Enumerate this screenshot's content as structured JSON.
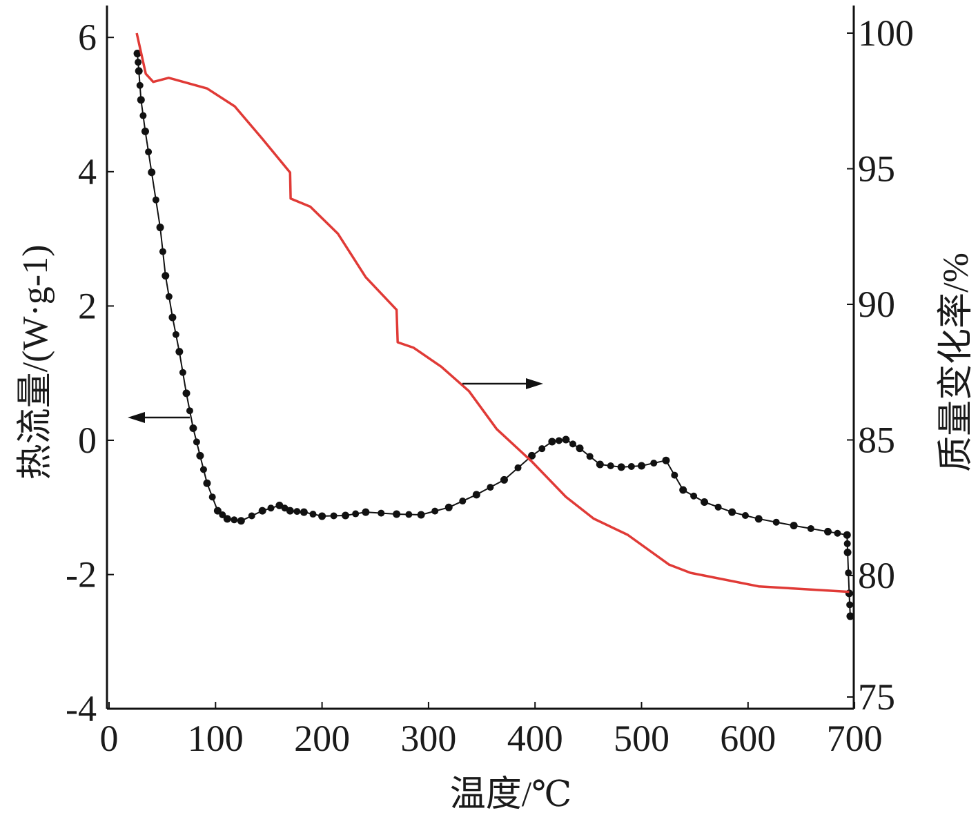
{
  "chart_data": {
    "type": "line",
    "title": "",
    "xlabel": "温度/℃",
    "ylabel_left": "热流量/(W·g-1)",
    "ylabel_left_parts": {
      "base": "热流量/(W·g",
      "sup": "-1",
      "close": ")"
    },
    "ylabel_right": "质量变化率/%",
    "xlim": [
      0,
      700
    ],
    "ylim_left": [
      -4,
      6.4
    ],
    "ylim_right": [
      75,
      101
    ],
    "x_ticks": [
      "0",
      "100",
      "200",
      "300",
      "400",
      "500",
      "600",
      "700"
    ],
    "y_left_ticks": [
      "6",
      "4",
      "2",
      "0",
      "-2",
      "-4"
    ],
    "y_right_ticks": [
      "100",
      "95",
      "90",
      "85",
      "80",
      "75"
    ],
    "grid": false,
    "series": [
      {
        "name": "热流量",
        "axis": "left",
        "color": "#111111",
        "marker": "circle",
        "x": [
          26.6,
          28,
          30,
          34,
          40,
          48,
          53,
          59.6,
          66,
          72.6,
          79,
          85.5,
          92,
          102,
          111,
          124,
          144,
          160,
          170,
          183,
          200,
          222,
          241,
          270,
          293,
          319,
          345,
          371,
          397,
          416,
          429,
          442,
          461,
          481,
          500,
          523,
          539,
          559,
          585,
          610,
          643,
          675,
          693,
          693.5,
          695,
          696
        ],
        "y": [
          5.76,
          5.5,
          5.07,
          4.6,
          3.99,
          3.17,
          2.45,
          1.83,
          1.32,
          0.7,
          0.18,
          -0.23,
          -0.64,
          -1.05,
          -1.17,
          -1.2,
          -1.05,
          -0.97,
          -1.05,
          -1.07,
          -1.13,
          -1.12,
          -1.07,
          -1.1,
          -1.11,
          -1.0,
          -0.81,
          -0.59,
          -0.23,
          -0.02,
          0.01,
          -0.12,
          -0.36,
          -0.4,
          -0.38,
          -0.3,
          -0.74,
          -0.92,
          -1.07,
          -1.17,
          -1.27,
          -1.36,
          -1.41,
          -1.67,
          -2.28,
          -2.62
        ]
      },
      {
        "name": "质量变化率",
        "axis": "right",
        "color": "#e03a36",
        "x": [
          26,
          34.5,
          41.5,
          56,
          92,
          118,
          144,
          170,
          170.5,
          189,
          215,
          241,
          270,
          271,
          286,
          312,
          338,
          364,
          397,
          429,
          455,
          487,
          526,
          546,
          610,
          695
        ],
        "y": [
          100,
          98.5,
          98.2,
          98.35,
          97.96,
          97.3,
          96.1,
          94.86,
          93.9,
          93.6,
          92.6,
          91.0,
          89.8,
          88.6,
          88.4,
          87.7,
          86.8,
          85.4,
          84.2,
          82.9,
          82.1,
          81.5,
          80.4,
          80.1,
          79.6,
          79.4
        ]
      }
    ],
    "annotations": [
      {
        "type": "arrow",
        "direction": "left",
        "meaning": "heat flow curve uses left axis"
      },
      {
        "type": "arrow",
        "direction": "right",
        "meaning": "mass curve uses right axis"
      }
    ]
  }
}
